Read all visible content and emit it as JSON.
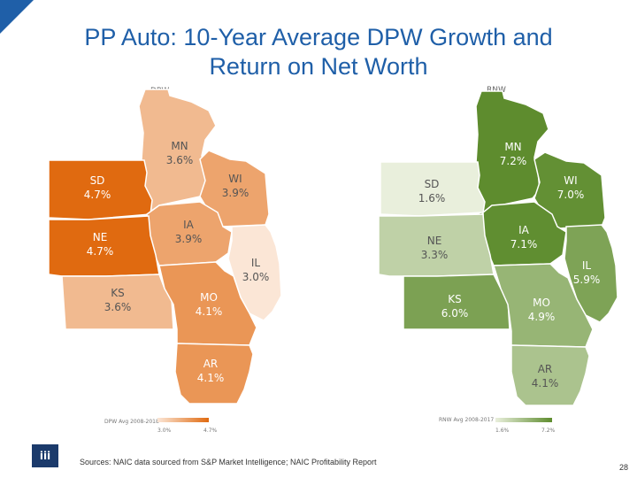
{
  "title": {
    "line1": "PP Auto: 10-Year Average DPW Growth and",
    "line2": "Return on Net Worth"
  },
  "colors": {
    "title": "#1f5fa8",
    "corner": "#1f5fa8",
    "dpw_dark": "#e06a10",
    "dpw_light": "#fbe6d6",
    "rnw_dark": "#5e8c2e",
    "rnw_light": "#e9efdc"
  },
  "dpw_map": {
    "label": "DPW",
    "legend_title": "DPW Avg 2008-2018",
    "legend_min": "3.0%",
    "legend_max": "4.7%",
    "states": [
      {
        "abbr": "MN",
        "value": "3.6%",
        "v": 3.6
      },
      {
        "abbr": "WI",
        "value": "3.9%",
        "v": 3.9
      },
      {
        "abbr": "SD",
        "value": "4.7%",
        "v": 4.7
      },
      {
        "abbr": "IA",
        "value": "3.9%",
        "v": 3.9
      },
      {
        "abbr": "NE",
        "value": "4.7%",
        "v": 4.7
      },
      {
        "abbr": "IL",
        "value": "3.0%",
        "v": 3.0
      },
      {
        "abbr": "KS",
        "value": "3.6%",
        "v": 3.6
      },
      {
        "abbr": "MO",
        "value": "4.1%",
        "v": 4.1
      },
      {
        "abbr": "AR",
        "value": "4.1%",
        "v": 4.1
      }
    ]
  },
  "rnw_map": {
    "label": "RNW",
    "legend_title": "RNW Avg 2008-2017",
    "legend_min": "1.6%",
    "legend_max": "7.2%",
    "states": [
      {
        "abbr": "MN",
        "value": "7.2%",
        "v": 7.2
      },
      {
        "abbr": "WI",
        "value": "7.0%",
        "v": 7.0
      },
      {
        "abbr": "SD",
        "value": "1.6%",
        "v": 1.6
      },
      {
        "abbr": "IA",
        "value": "7.1%",
        "v": 7.1
      },
      {
        "abbr": "NE",
        "value": "3.3%",
        "v": 3.3
      },
      {
        "abbr": "IL",
        "value": "5.9%",
        "v": 5.9
      },
      {
        "abbr": "KS",
        "value": "6.0%",
        "v": 6.0
      },
      {
        "abbr": "MO",
        "value": "4.9%",
        "v": 4.9
      },
      {
        "abbr": "AR",
        "value": "4.1%",
        "v": 4.1
      }
    ]
  },
  "footer": {
    "logo_text": "iii",
    "sources": "Sources: NAIC data sourced from S&P Market Intelligence; NAIC Profitability Report",
    "page_number": "28"
  }
}
